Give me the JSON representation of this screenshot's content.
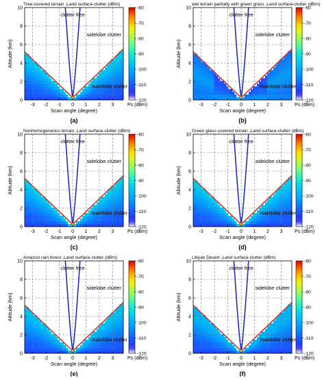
{
  "colorbar": {
    "ticks": [
      -60,
      -70,
      -80,
      -90,
      -100,
      -110,
      -120
    ],
    "label": "Ps (dBm)",
    "range": [
      -120,
      -60
    ]
  },
  "chart_data": [
    {
      "type": "heatmap",
      "title": "Tree-covered terrain ,Land surface-clutter (dBm)",
      "panel_label": "(a)",
      "xlabel": "Scan angle (degree)",
      "ylabel": "Altitude (km)",
      "xlim": [
        -3.6,
        3.8
      ],
      "ylim": [
        0,
        10
      ],
      "xticks": [
        -3,
        -2,
        -1,
        0,
        1,
        2,
        3
      ],
      "yticks": [
        0,
        2,
        4,
        6,
        8,
        10
      ],
      "grid": true,
      "annotations": [
        "clutter free",
        "sidelobe clutter",
        "mainlobe clutter"
      ],
      "boundary_lines": {
        "red_top_altitude_km": 5.5,
        "blue_top_angle_deg": 0.55
      },
      "clutter_max_dBm": -96,
      "pattern": "wedge"
    },
    {
      "type": "heatmap",
      "title": "wet terrain partially with green grass ,Land surface-clutter (dBm)",
      "panel_label": "(b)",
      "xlabel": "Scan angle (degree)",
      "ylabel": "Altitude (km)",
      "xlim": [
        -3.6,
        3.8
      ],
      "ylim": [
        0,
        10
      ],
      "xticks": [
        -3,
        -2,
        -1,
        0,
        1,
        2,
        3
      ],
      "yticks": [
        0,
        2,
        4,
        6,
        8,
        10
      ],
      "grid": true,
      "annotations": [
        "clutter free",
        "sidelobe clutter",
        "mainlobe clutter"
      ],
      "boundary_lines": {
        "red_top_altitude_km": 5.5,
        "blue_top_angle_deg": 0.55
      },
      "clutter_max_dBm": -99,
      "pattern": "wet"
    },
    {
      "type": "heatmap",
      "title": "Nonhomogeneous terrain ,Land surface-clutter (dBm)",
      "panel_label": "(c)",
      "xlabel": "Scan angle (degree)",
      "ylabel": "Altitude (km)",
      "xlim": [
        -3.6,
        3.8
      ],
      "ylim": [
        0,
        10
      ],
      "xticks": [
        -3,
        -2,
        -1,
        0,
        1,
        2,
        3
      ],
      "yticks": [
        0,
        2,
        4,
        6,
        8,
        10
      ],
      "grid": true,
      "annotations": [
        "clutter free",
        "sidelobe clutter",
        "mainlobe clutter"
      ],
      "boundary_lines": {
        "red_top_altitude_km": 5.5,
        "blue_top_angle_deg": 0.55
      },
      "clutter_max_dBm": -94,
      "pattern": "wedge"
    },
    {
      "type": "heatmap",
      "title": "Green glass-covered terrain ,Land surface-clutter (dBm)",
      "panel_label": "(d)",
      "xlabel": "Scan angle (degree)",
      "ylabel": "Altitude (km)",
      "xlim": [
        -3.6,
        3.8
      ],
      "ylim": [
        0,
        10
      ],
      "xticks": [
        -3,
        -2,
        -1,
        0,
        1,
        2,
        3
      ],
      "yticks": [
        0,
        2,
        4,
        6,
        8,
        10
      ],
      "grid": true,
      "annotations": [
        "clutter free",
        "sidelobe clutter",
        "mainlobe clutter"
      ],
      "boundary_lines": {
        "red_top_altitude_km": 5.5,
        "blue_top_angle_deg": 0.55
      },
      "clutter_max_dBm": -95,
      "pattern": "wedge"
    },
    {
      "type": "heatmap",
      "title": "Amazon rain forest ,Land surface-clutter (dBm)",
      "panel_label": "(e)",
      "xlabel": "Scan angle (degree)",
      "ylabel": "Altitude (km)",
      "xlim": [
        -3.6,
        3.8
      ],
      "ylim": [
        0,
        10
      ],
      "xticks": [
        -3,
        -2,
        -1,
        0,
        1,
        2,
        3
      ],
      "yticks": [
        0,
        2,
        4,
        6,
        8,
        10
      ],
      "grid": true,
      "annotations": [
        "clutter free",
        "sidelobe clutter",
        "mainlobe clutter"
      ],
      "boundary_lines": {
        "red_top_altitude_km": 5.5,
        "blue_top_angle_deg": 0.55
      },
      "clutter_max_dBm": -97,
      "pattern": "wedge"
    },
    {
      "type": "heatmap",
      "title": "Libyan Desert ,Land surface-clutter (dBm)",
      "panel_label": "(f)",
      "xlabel": "Scan angle (degree)",
      "ylabel": "Altitude (km)",
      "xlim": [
        -3.6,
        3.8
      ],
      "ylim": [
        0,
        10
      ],
      "xticks": [
        -3,
        -2,
        -1,
        0,
        1,
        2,
        3
      ],
      "yticks": [
        0,
        2,
        4,
        6,
        8,
        10
      ],
      "grid": true,
      "annotations": [
        "clutter free",
        "sidelobe clutter",
        "mainlobe clutter"
      ],
      "boundary_lines": {
        "red_top_altitude_km": 5.5,
        "blue_top_angle_deg": 0.55
      },
      "clutter_max_dBm": -99,
      "pattern": "wedge"
    }
  ]
}
